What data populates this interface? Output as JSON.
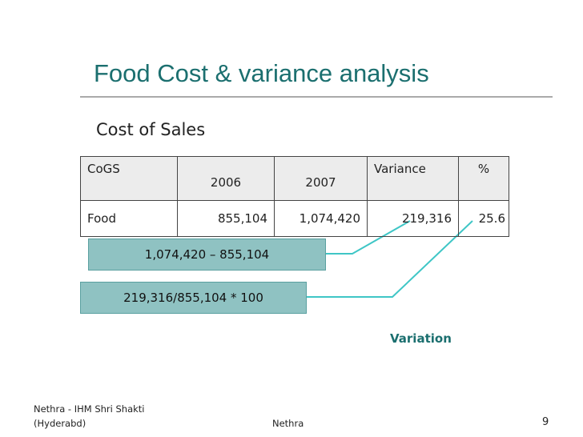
{
  "title": "Food Cost & variance analysis",
  "subtitle": "Cost of Sales",
  "table": {
    "header": [
      "CoGS",
      "2006",
      "2007",
      "Variance",
      "%"
    ],
    "rows": [
      [
        "Food",
        "855,104",
        "1,074,420",
        "219,316",
        "25.6"
      ]
    ]
  },
  "formulas": [
    "1,074,420 – 855,104",
    "219,316/855,104 * 100"
  ],
  "note": "Variation",
  "footer": {
    "left": [
      "Nethra - IHM Shri Shakti",
      "(Hyderabd)"
    ],
    "center": "Nethra",
    "page": "9"
  }
}
